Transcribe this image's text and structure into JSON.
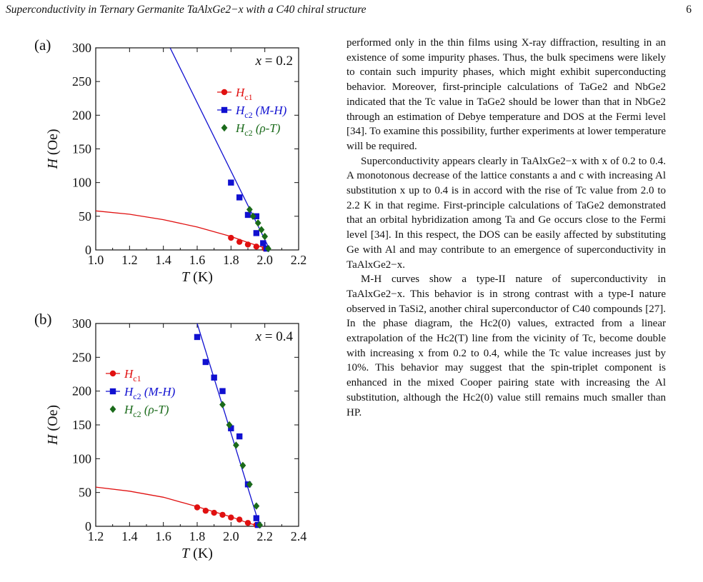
{
  "running_head": {
    "title": "Superconductivity in Ternary Germanite TaAlxGe2−x with a C40 chiral structure",
    "page": "6"
  },
  "colors": {
    "hc1": "#e01010",
    "hc2_mh": "#1010d0",
    "hc2_rt": "#1a6a1a"
  },
  "figure": {
    "panels": [
      {
        "label": "(a)",
        "composition": "x = 0.2",
        "xlabel": "T (K)",
        "ylabel": "H (Oe)",
        "xticks": [
          "1.0",
          "1.2",
          "1.4",
          "1.6",
          "1.8",
          "2.0",
          "2.2"
        ],
        "yticks": [
          "0",
          "50",
          "100",
          "150",
          "200",
          "250",
          "300"
        ],
        "legend": [
          "Hc1",
          "Hc2 (M-H)",
          "Hc2 (ρ-T)"
        ]
      },
      {
        "label": "(b)",
        "composition": "x = 0.4",
        "xlabel": "T (K)",
        "ylabel": "H (Oe)",
        "xticks": [
          "1.2",
          "1.4",
          "1.6",
          "1.8",
          "2.0",
          "2.2",
          "2.4"
        ],
        "yticks": [
          "0",
          "50",
          "100",
          "150",
          "200",
          "250",
          "300"
        ],
        "legend": [
          "Hc1",
          "Hc2 (M-H)",
          "Hc2 (ρ-T)"
        ]
      }
    ]
  },
  "chart_data": [
    {
      "type": "scatter",
      "title": "(a) x = 0.2",
      "xlabel": "T (K)",
      "ylabel": "H (Oe)",
      "xlim": [
        1.0,
        2.2
      ],
      "ylim": [
        0,
        300
      ],
      "series": [
        {
          "name": "Hc1",
          "color": "#e01010",
          "marker": "circle",
          "x": [
            1.8,
            1.85,
            1.9,
            1.95,
            2.0
          ],
          "y": [
            18,
            12,
            8,
            5,
            2
          ],
          "fit": {
            "x": [
              1.0,
              1.2,
              1.4,
              1.6,
              1.8,
              1.9,
              2.0,
              2.03
            ],
            "y": [
              58,
              53,
              45,
              34,
              20,
              11,
              3,
              0
            ]
          }
        },
        {
          "name": "Hc2 (M-H)",
          "color": "#1010d0",
          "marker": "square",
          "x": [
            1.8,
            1.85,
            1.9,
            1.95,
            1.95,
            1.99,
            2.01
          ],
          "y": [
            100,
            78,
            52,
            50,
            25,
            10,
            2
          ],
          "fit": {
            "x": [
              1.44,
              2.03
            ],
            "y": [
              300,
              0
            ]
          }
        },
        {
          "name": "Hc2 (ρ-T)",
          "color": "#1a6a1a",
          "marker": "diamond",
          "x": [
            1.91,
            1.93,
            1.96,
            1.98,
            2.0,
            2.02
          ],
          "y": [
            60,
            50,
            40,
            30,
            20,
            2
          ]
        }
      ]
    },
    {
      "type": "scatter",
      "title": "(b) x = 0.4",
      "xlabel": "T (K)",
      "ylabel": "H (Oe)",
      "xlim": [
        1.2,
        2.4
      ],
      "ylim": [
        0,
        300
      ],
      "series": [
        {
          "name": "Hc1",
          "color": "#e01010",
          "marker": "circle",
          "x": [
            1.8,
            1.85,
            1.9,
            1.95,
            2.0,
            2.05,
            2.1,
            2.15
          ],
          "y": [
            28,
            23,
            20,
            17,
            13,
            10,
            5,
            2
          ],
          "fit": {
            "x": [
              1.2,
              1.4,
              1.6,
              1.8,
              2.0,
              2.1,
              2.17
            ],
            "y": [
              58,
              52,
              43,
              29,
              14,
              5,
              0
            ]
          }
        },
        {
          "name": "Hc2 (M-H)",
          "color": "#1010d0",
          "marker": "square",
          "x": [
            1.8,
            1.85,
            1.9,
            1.95,
            2.0,
            2.05,
            2.1,
            2.15,
            2.16
          ],
          "y": [
            280,
            243,
            220,
            200,
            145,
            133,
            62,
            12,
            2
          ],
          "fit": {
            "x": [
              1.8,
              2.17
            ],
            "y": [
              300,
              0
            ]
          }
        },
        {
          "name": "Hc2 (ρ-T)",
          "color": "#1a6a1a",
          "marker": "diamond",
          "x": [
            1.95,
            1.99,
            2.03,
            2.07,
            2.11,
            2.15,
            2.17
          ],
          "y": [
            180,
            150,
            120,
            90,
            62,
            30,
            2
          ]
        }
      ]
    }
  ],
  "body": {
    "paragraphs": [
      "performed only in the thin films using X-ray diffraction, resulting in an existence of some impurity phases. Thus, the bulk specimens were likely to contain such impurity phases, which might exhibit superconducting behavior.  Moreover, first-principle calculations of TaGe2 and NbGe2 indicated that the Tc value in TaGe2 should be lower than that in NbGe2 through an estimation of Debye temperature and DOS at the Fermi level [34]. To examine this possibility, further experiments at lower temperature will be required.",
      "Superconductivity appears clearly in TaAlxGe2−x with x of 0.2 to 0.4.  A monotonous decrease of the lattice constants a and c with increasing Al substitution x up to 0.4 is in accord with the rise of Tc value from 2.0 to 2.2 K in that regime. First-principle calculations of TaGe2 demonstrated that an orbital hybridization among Ta and Ge occurs close to the Fermi level [34]. In this respect, the DOS can be easily affected by substituting Ge with Al and may contribute to an emergence of superconductivity in TaAlxGe2−x.",
      "M-H curves show a type-II nature of superconductivity in TaAlxGe2−x.  This behavior is in strong contrast with a type-I nature observed in TaSi2, another chiral superconductor of C40 compounds [27]. In the phase diagram, the Hc2(0) values, extracted from a linear extrapolation of the Hc2(T) line from the vicinity of Tc, become double with increasing x from 0.2 to 0.4, while the Tc value increases just by 10%. This behavior may suggest that the spin-triplet component is enhanced in the mixed Cooper pairing state with increasing the Al substitution, although the Hc2(0) value still remains much smaller than HP."
    ]
  }
}
